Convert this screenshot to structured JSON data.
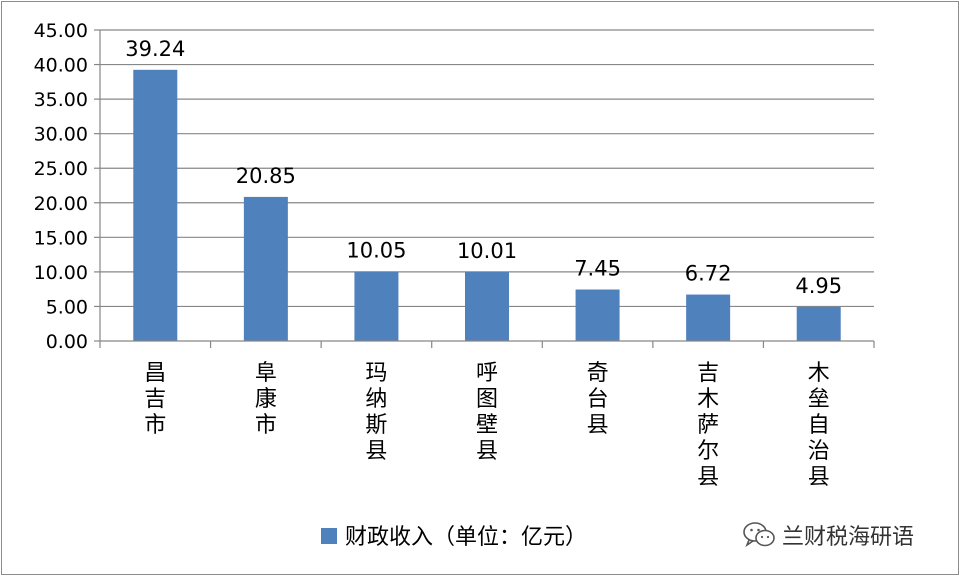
{
  "chart_data": {
    "type": "bar",
    "categories": [
      "昌吉市",
      "阜康市",
      "玛纳斯县",
      "呼图壁县",
      "奇台县",
      "吉木萨尔县",
      "木垒自治县"
    ],
    "series": [
      {
        "name": "财政收入（单位：亿元）",
        "values": [
          39.24,
          20.85,
          10.05,
          10.01,
          7.45,
          6.72,
          4.95
        ]
      }
    ],
    "data_labels": [
      "39.24",
      "20.85",
      "10.05",
      "10.01",
      "7.45",
      "6.72",
      "4.95"
    ],
    "ylim": [
      0,
      45
    ],
    "ytick_labels": [
      "0.00",
      "5.00",
      "10.00",
      "15.00",
      "20.00",
      "25.00",
      "30.00",
      "35.00",
      "40.00",
      "45.00"
    ],
    "grid": true,
    "legend_position": "bottom",
    "colors": {
      "bar": "#4f81bd",
      "grid": "#878787",
      "axis": "#878787"
    }
  },
  "watermark": {
    "text": "兰财税海研语",
    "icon": "wechat-icon"
  }
}
